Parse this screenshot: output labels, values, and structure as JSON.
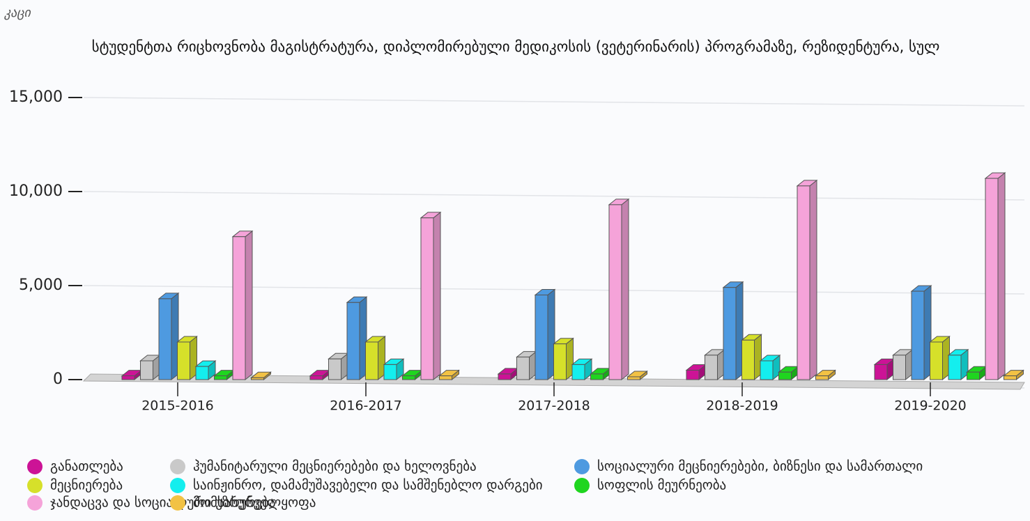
{
  "chart_data": {
    "type": "bar3d",
    "unit": "კაცი",
    "title": "სტუდენტთა რიცხოვნობა მაგისტრატურა, დიპლომირებული მედიკოსის (ვეტერინარის) პროგრამაზე, რეზიდენტურა, სულ",
    "categories": [
      "2015-2016",
      "2016-2017",
      "2017-2018",
      "2018-2019",
      "2019-2020"
    ],
    "series": [
      {
        "name": "განათლება",
        "color": "#cc1396",
        "values": [
          200,
          200,
          300,
          500,
          800
        ]
      },
      {
        "name": "ჰუმანიტარული მეცნიერებები და ხელოვნება",
        "color": "#c9c9c9",
        "values": [
          1000,
          1100,
          1200,
          1300,
          1300
        ]
      },
      {
        "name": "სოციალური მეცნიერებები, ბიზნესი და სამართალი",
        "color": "#4e9ae0",
        "values": [
          4300,
          4100,
          4500,
          4900,
          4700
        ]
      },
      {
        "name": "მეცნიერება",
        "color": "#d6e02a",
        "values": [
          2000,
          2000,
          1900,
          2100,
          2000
        ]
      },
      {
        "name": "საინჟინრო, დამამუშავებელი და სამშენებლო დარგები",
        "color": "#14eeee",
        "values": [
          700,
          800,
          800,
          1000,
          1300
        ]
      },
      {
        "name": "სოფლის მეურნეობა",
        "color": "#1fd51f",
        "values": [
          200,
          200,
          300,
          400,
          400
        ]
      },
      {
        "name": "ჯანდაცვა და სოციალური უზრუნველყოფა",
        "color": "#f5a3d9",
        "values": [
          7600,
          8600,
          9300,
          10300,
          10700
        ]
      },
      {
        "name": "მომსახურება",
        "color": "#f2c244",
        "values": [
          100,
          200,
          150,
          200,
          200
        ]
      }
    ],
    "ylim": [
      0,
      15000
    ],
    "yticks": [
      0,
      {
        "value": 5000,
        "label": "5,000"
      },
      {
        "value": 10000,
        "label": "10,000"
      },
      {
        "value": 15000,
        "label": "15,000"
      }
    ],
    "grid": true
  }
}
